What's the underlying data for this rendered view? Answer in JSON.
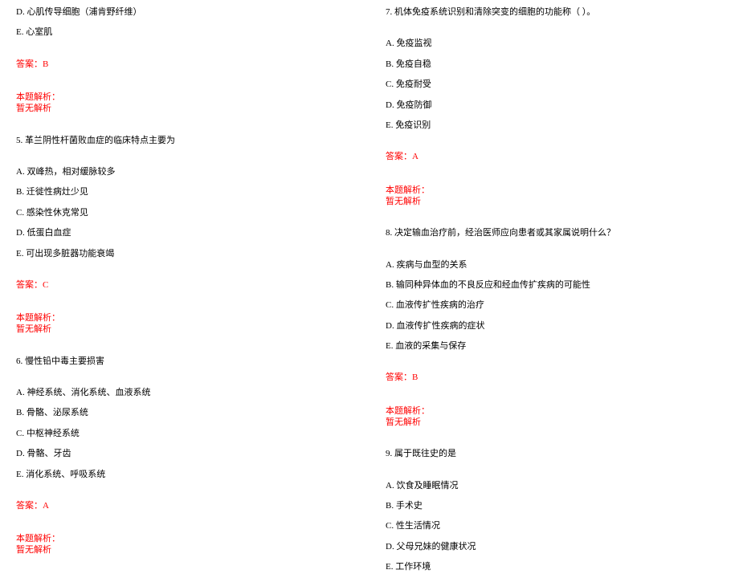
{
  "left": {
    "q4_d": "D. 心肌传导细胞（浦肯野纤维）",
    "q4_e": "E. 心室肌",
    "q4_ans": "答案：B",
    "q4_exp_label": "本题解析：",
    "q4_exp_body": "暂无解析",
    "q5_title": "5. 革兰阴性杆菌败血症的临床特点主要为",
    "q5_a": "A. 双峰热，相对缓脉较多",
    "q5_b": "B. 迁徙性病灶少见",
    "q5_c": "C. 感染性休克常见",
    "q5_d": "D. 低蛋白血症",
    "q5_e": "E. 可出现多脏器功能衰竭",
    "q5_ans": "答案：C",
    "q5_exp_label": "本题解析：",
    "q5_exp_body": "暂无解析",
    "q6_title": "6. 慢性铅中毒主要损害",
    "q6_a": "A. 神经系统、消化系统、血液系统",
    "q6_b": "B. 骨骼、泌尿系统",
    "q6_c": "C. 中枢神经系统",
    "q6_d": "D. 骨骼、牙齿",
    "q6_e": "E. 消化系统、呼吸系统",
    "q6_ans": "答案：A",
    "q6_exp_label": "本题解析：",
    "q6_exp_body": "暂无解析"
  },
  "right": {
    "q7_title": "7. 机体免疫系统识别和清除突变的细胞的功能称（ ）。",
    "q7_a": "A. 免疫监视",
    "q7_b": "B. 免疫自稳",
    "q7_c": "C. 免疫耐受",
    "q7_d": "D. 免疫防御",
    "q7_e": "E. 免疫识别",
    "q7_ans": "答案：A",
    "q7_exp_label": "本题解析：",
    "q7_exp_body": "暂无解析",
    "q8_title": "8. 决定输血治疗前，经治医师应向患者或其家属说明什么？",
    "q8_a": "A. 疾病与血型的关系",
    "q8_b": "B. 输同种异体血的不良反应和经血传扩疾病的可能性",
    "q8_c": "C. 血液传扩性疾病的治疗",
    "q8_d": "D. 血液传扩性疾病的症状",
    "q8_e": "E. 血液的采集与保存",
    "q8_ans": "答案：B",
    "q8_exp_label": "本题解析：",
    "q8_exp_body": "暂无解析",
    "q9_title": "9. 属于既往史的是",
    "q9_a": "A. 饮食及睡眠情况",
    "q9_b": "B. 手术史",
    "q9_c": "C. 性生活情况",
    "q9_d": "D. 父母兄妹的健康状况",
    "q9_e": "E. 工作环境"
  }
}
